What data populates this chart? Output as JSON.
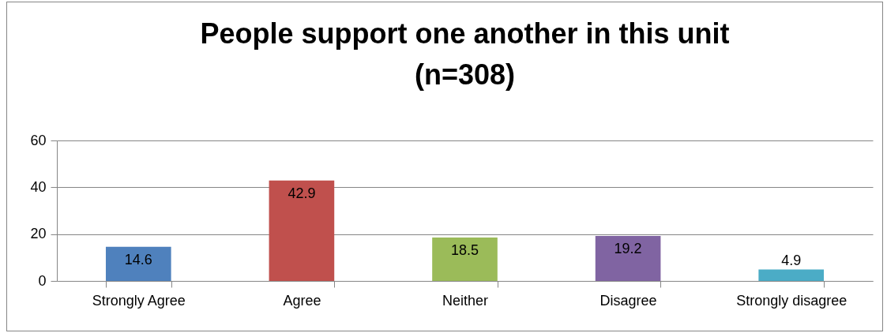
{
  "chart_data": {
    "type": "bar",
    "title": "People support one another in this unit\n(n=308)",
    "categories": [
      "Strongly Agree",
      "Agree",
      "Neither",
      "Disagree",
      "Strongly disagree"
    ],
    "values": [
      14.6,
      42.9,
      18.5,
      19.2,
      4.9
    ],
    "colors": [
      "#4f81bd",
      "#c0504d",
      "#9bbb59",
      "#8064a2",
      "#4bacc6"
    ],
    "ylim": [
      0,
      60
    ],
    "yticks": [
      0,
      20,
      40,
      60
    ],
    "grid": "y",
    "data_labels": true
  }
}
